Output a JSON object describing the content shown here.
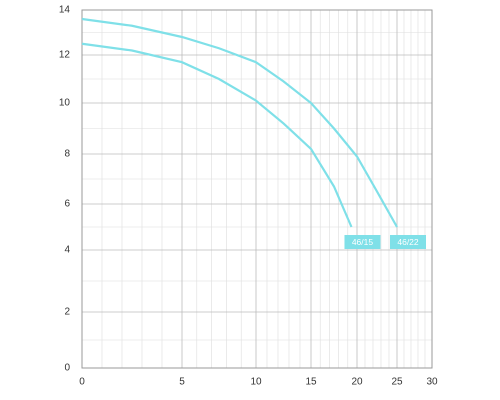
{
  "chart_data": {
    "type": "line",
    "xlim": [
      0,
      30
    ],
    "xticks": [
      0,
      5,
      10,
      15,
      20,
      25,
      30
    ],
    "ylim": [
      0,
      14
    ],
    "yticks": [
      0,
      2,
      4,
      6,
      8,
      10,
      12,
      14
    ],
    "grid": true,
    "series": [
      {
        "name": "46/15",
        "color": "#7fe0e8",
        "x": [
          0,
          2.5,
          5,
          7.5,
          10,
          12.5,
          15,
          17.5,
          19.4
        ],
        "values": [
          12.5,
          12.2,
          11.7,
          11.0,
          10.1,
          9.2,
          8.2,
          6.7,
          5.0
        ]
      },
      {
        "name": "46/22",
        "color": "#7fe0e8",
        "x": [
          0,
          2.5,
          5,
          7.5,
          10,
          12.5,
          15,
          17.5,
          20,
          22.5,
          25
        ],
        "values": [
          13.6,
          13.3,
          12.8,
          12.3,
          11.7,
          10.9,
          10.0,
          9.0,
          7.9,
          6.5,
          5.0
        ]
      }
    ]
  }
}
